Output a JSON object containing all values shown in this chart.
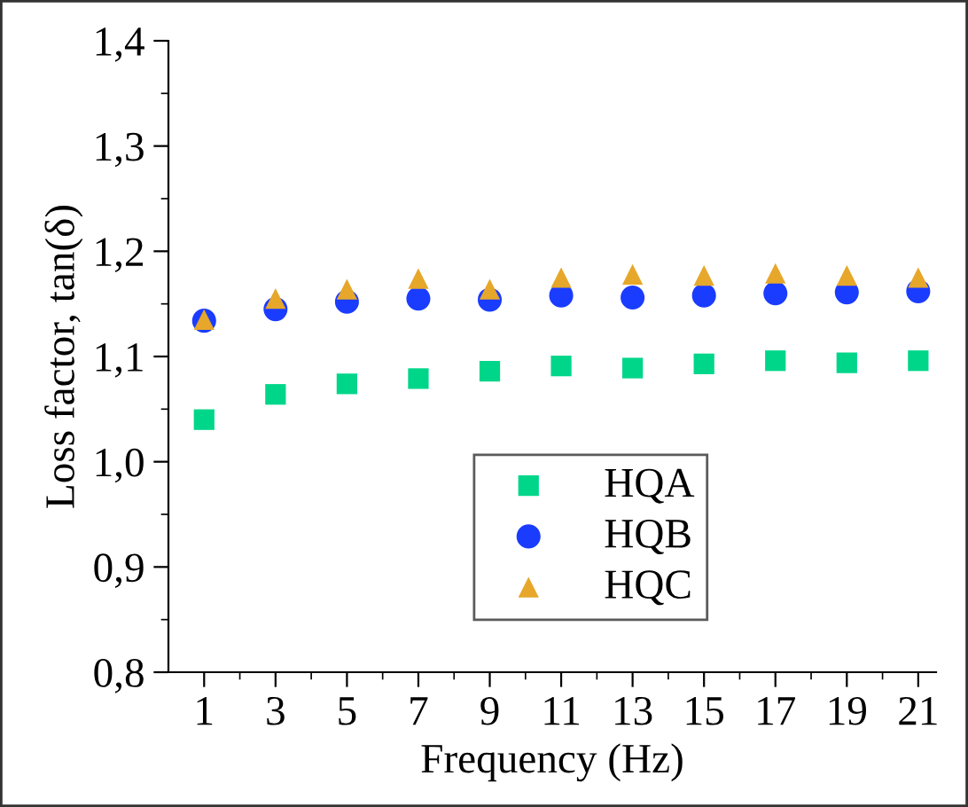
{
  "chart_data": {
    "type": "scatter",
    "xlabel": "Frequency (Hz)",
    "ylabel": "Loss factor, tan(δ)",
    "x": [
      1,
      3,
      5,
      7,
      9,
      11,
      13,
      15,
      17,
      19,
      21
    ],
    "series": [
      {
        "name": "HQA",
        "color": "#00d68a",
        "marker": "square",
        "values": [
          1.04,
          1.064,
          1.074,
          1.079,
          1.086,
          1.091,
          1.089,
          1.093,
          1.096,
          1.094,
          1.096
        ]
      },
      {
        "name": "HQB",
        "color": "#1a3cff",
        "marker": "circle",
        "values": [
          1.134,
          1.145,
          1.152,
          1.155,
          1.154,
          1.158,
          1.156,
          1.158,
          1.16,
          1.161,
          1.162
        ]
      },
      {
        "name": "HQC",
        "color": "#e6a72a",
        "marker": "triangle",
        "values": [
          1.135,
          1.155,
          1.164,
          1.174,
          1.164,
          1.175,
          1.178,
          1.177,
          1.179,
          1.177,
          1.175
        ]
      }
    ],
    "xlim": [
      0,
      21.5
    ],
    "xticks": [
      1,
      {
        "value": 2,
        "label": null
      },
      3,
      {
        "value": 4,
        "label": null
      },
      5,
      {
        "value": 6,
        "label": null
      },
      7,
      {
        "value": 8,
        "label": null
      },
      9,
      {
        "value": 10,
        "label": null
      },
      11,
      {
        "value": 12,
        "label": null
      },
      13,
      {
        "value": 14,
        "label": null
      },
      15,
      {
        "value": 16,
        "label": null
      },
      17,
      {
        "value": 18,
        "label": null
      },
      19,
      {
        "value": 20,
        "label": null
      },
      21
    ],
    "ylim": [
      0.8,
      1.4
    ],
    "yticks": [
      {
        "value": 0.8,
        "label": "0,8"
      },
      {
        "value": 0.85,
        "label": null
      },
      {
        "value": 0.9,
        "label": "0,9"
      },
      {
        "value": 0.95,
        "label": null
      },
      {
        "value": 1.0,
        "label": "1,0"
      },
      {
        "value": 1.05,
        "label": null
      },
      {
        "value": 1.1,
        "label": "1,1"
      },
      {
        "value": 1.15,
        "label": null
      },
      {
        "value": 1.2,
        "label": "1,2"
      },
      {
        "value": 1.25,
        "label": null
      },
      {
        "value": 1.3,
        "label": "1,3"
      },
      {
        "value": 1.35,
        "label": null
      },
      {
        "value": 1.4,
        "label": "1,4"
      }
    ],
    "grid": false,
    "legend": "bottom"
  }
}
